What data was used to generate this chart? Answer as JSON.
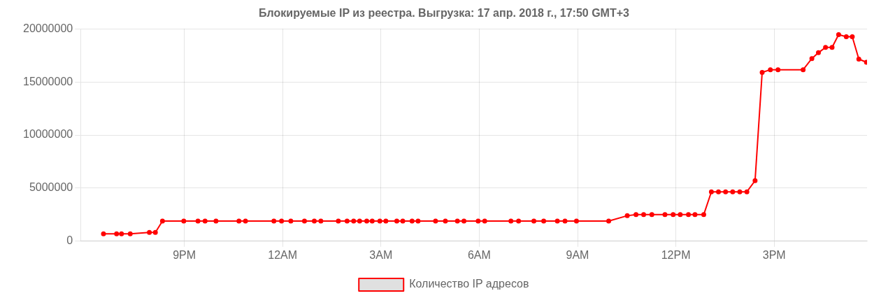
{
  "chart_data": {
    "type": "line",
    "title": "Блокируемые IP из реестра. Выгрузка: 17 апр. 2018 г., 17:50 GMT+3",
    "x": [
      "2018-04-16T18:32",
      "2018-04-16T18:56",
      "2018-04-16T19:05",
      "2018-04-16T19:21",
      "2018-04-16T19:56",
      "2018-04-16T20:07",
      "2018-04-16T20:20",
      "2018-04-16T20:59",
      "2018-04-16T21:25",
      "2018-04-16T21:38",
      "2018-04-16T21:58",
      "2018-04-16T22:40",
      "2018-04-16T22:52",
      "2018-04-16T23:44",
      "2018-04-16T23:58",
      "2018-04-17T00:15",
      "2018-04-17T00:40",
      "2018-04-17T00:58",
      "2018-04-17T01:10",
      "2018-04-17T01:42",
      "2018-04-17T01:58",
      "2018-04-17T02:10",
      "2018-04-17T02:21",
      "2018-04-17T02:34",
      "2018-04-17T02:44",
      "2018-04-17T02:58",
      "2018-04-17T03:09",
      "2018-04-17T03:29",
      "2018-04-17T03:40",
      "2018-04-17T03:57",
      "2018-04-17T04:08",
      "2018-04-17T04:40",
      "2018-04-17T04:58",
      "2018-04-17T05:20",
      "2018-04-17T05:32",
      "2018-04-17T05:58",
      "2018-04-17T06:10",
      "2018-04-17T06:58",
      "2018-04-17T07:12",
      "2018-04-17T07:40",
      "2018-04-17T07:58",
      "2018-04-17T08:23",
      "2018-04-17T08:37",
      "2018-04-17T08:58",
      "2018-04-17T09:57",
      "2018-04-17T10:31",
      "2018-04-17T10:47",
      "2018-04-17T11:01",
      "2018-04-17T11:16",
      "2018-04-17T11:40",
      "2018-04-17T11:55",
      "2018-04-17T12:08",
      "2018-04-17T12:23",
      "2018-04-17T12:35",
      "2018-04-17T12:51",
      "2018-04-17T13:05",
      "2018-04-17T13:18",
      "2018-04-17T13:31",
      "2018-04-17T13:44",
      "2018-04-17T13:57",
      "2018-04-17T14:10",
      "2018-04-17T14:25",
      "2018-04-17T14:38",
      "2018-04-17T14:53",
      "2018-04-17T15:07",
      "2018-04-17T15:53",
      "2018-04-17T16:09",
      "2018-04-17T16:21",
      "2018-04-17T16:34",
      "2018-04-17T16:46",
      "2018-04-17T16:58",
      "2018-04-17T17:12",
      "2018-04-17T17:23",
      "2018-04-17T17:35",
      "2018-04-17T17:49"
    ],
    "series": [
      {
        "name": "Количество IP адресов",
        "color": "#ff0000",
        "values": [
          700000,
          700000,
          700000,
          700000,
          830000,
          830000,
          1900000,
          1900000,
          1900000,
          1900000,
          1900000,
          1900000,
          1900000,
          1900000,
          1900000,
          1900000,
          1900000,
          1900000,
          1900000,
          1900000,
          1900000,
          1900000,
          1900000,
          1900000,
          1900000,
          1900000,
          1900000,
          1900000,
          1900000,
          1900000,
          1900000,
          1900000,
          1900000,
          1900000,
          1900000,
          1900000,
          1900000,
          1900000,
          1900000,
          1900000,
          1900000,
          1900000,
          1900000,
          1900000,
          1900000,
          2400000,
          2500000,
          2500000,
          2500000,
          2500000,
          2500000,
          2500000,
          2500000,
          2500000,
          2500000,
          4650000,
          4650000,
          4650000,
          4650000,
          4650000,
          4650000,
          5700000,
          15900000,
          16150000,
          16150000,
          16150000,
          17200000,
          17750000,
          18250000,
          18250000,
          19450000,
          19250000,
          19250000,
          17150000,
          16850000
        ]
      }
    ],
    "xlim": [
      "2018-04-16T17:50",
      "2018-04-17T17:50"
    ],
    "xticks": [
      {
        "value": "2018-04-16T21:00",
        "label": "9PM"
      },
      {
        "value": "2018-04-17T00:00",
        "label": "12AM"
      },
      {
        "value": "2018-04-17T03:00",
        "label": "3AM"
      },
      {
        "value": "2018-04-17T06:00",
        "label": "6AM"
      },
      {
        "value": "2018-04-17T09:00",
        "label": "9AM"
      },
      {
        "value": "2018-04-17T12:00",
        "label": "12PM"
      },
      {
        "value": "2018-04-17T15:00",
        "label": "3PM"
      }
    ],
    "ylim": [
      0,
      20000000
    ],
    "yticks": [
      0,
      5000000,
      10000000,
      15000000,
      20000000
    ],
    "grid": true,
    "legend": "bottom",
    "marker": "circle",
    "line_style": "solid"
  }
}
